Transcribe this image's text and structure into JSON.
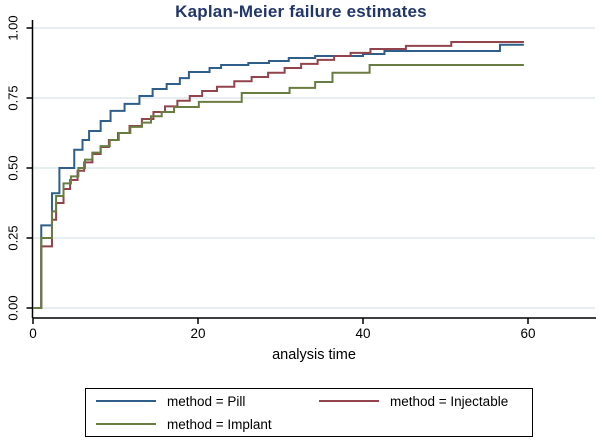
{
  "title": {
    "text": "Kaplan-Meier failure estimates",
    "color": "#21366b"
  },
  "chart_data": {
    "type": "line",
    "subtype": "step-survival",
    "title": "Kaplan-Meier failure estimates",
    "xlabel": "analysis time",
    "ylabel": "",
    "xlim": [
      0,
      68
    ],
    "ylim": [
      0,
      1.0
    ],
    "xticks": [
      0,
      20,
      40,
      60
    ],
    "ytick_labels": [
      "0.00",
      "0.25",
      "0.50",
      "0.75",
      "1.00"
    ],
    "ytick_values": [
      0,
      0.25,
      0.5,
      0.75,
      1.0
    ],
    "grid": "horizontal-only",
    "gridline_color": "#e7eef0",
    "axis_color": "#000000",
    "tick_label_color": "#000000",
    "legend_position": "bottom",
    "end_time": 59.5,
    "series": [
      {
        "name": "method = Pill",
        "color": "#2e5e89",
        "steps": [
          [
            1,
            0.295
          ],
          [
            2.3,
            0.41
          ],
          [
            3.2,
            0.5
          ],
          [
            5,
            0.565
          ],
          [
            6,
            0.6
          ],
          [
            6.8,
            0.632
          ],
          [
            8.2,
            0.668
          ],
          [
            9.4,
            0.704
          ],
          [
            11.1,
            0.729
          ],
          [
            12.9,
            0.757
          ],
          [
            14.5,
            0.782
          ],
          [
            16.2,
            0.8
          ],
          [
            17.8,
            0.821
          ],
          [
            18.9,
            0.843
          ],
          [
            21.4,
            0.857
          ],
          [
            22.8,
            0.868
          ],
          [
            26.1,
            0.875
          ],
          [
            28.6,
            0.882
          ],
          [
            31,
            0.893
          ],
          [
            34.2,
            0.9
          ],
          [
            40,
            0.907
          ],
          [
            42.6,
            0.918
          ],
          [
            56.6,
            0.94
          ]
        ]
      },
      {
        "name": "method = Injectable",
        "color": "#92434b",
        "steps": [
          [
            1,
            0.22
          ],
          [
            2.3,
            0.315
          ],
          [
            2.8,
            0.375
          ],
          [
            3.7,
            0.425
          ],
          [
            4.5,
            0.457
          ],
          [
            5.4,
            0.49
          ],
          [
            6.2,
            0.52
          ],
          [
            7.2,
            0.55
          ],
          [
            8.2,
            0.575
          ],
          [
            9.2,
            0.6
          ],
          [
            10.3,
            0.625
          ],
          [
            11.7,
            0.65
          ],
          [
            13.2,
            0.675
          ],
          [
            14.6,
            0.7
          ],
          [
            16,
            0.72
          ],
          [
            17.5,
            0.74
          ],
          [
            19,
            0.757
          ],
          [
            20.5,
            0.775
          ],
          [
            22.3,
            0.79
          ],
          [
            24.4,
            0.81
          ],
          [
            26.5,
            0.825
          ],
          [
            28.5,
            0.84
          ],
          [
            30.5,
            0.857
          ],
          [
            32.5,
            0.872
          ],
          [
            34.5,
            0.886
          ],
          [
            36.5,
            0.9
          ],
          [
            38.5,
            0.911
          ],
          [
            40.9,
            0.925
          ],
          [
            45.2,
            0.936
          ],
          [
            50.7,
            0.95
          ]
        ]
      },
      {
        "name": "method = Implant",
        "color": "#697c41",
        "steps": [
          [
            1,
            0.25
          ],
          [
            2.3,
            0.345
          ],
          [
            2.8,
            0.4
          ],
          [
            3.7,
            0.445
          ],
          [
            4.6,
            0.47
          ],
          [
            5.5,
            0.5
          ],
          [
            6.3,
            0.53
          ],
          [
            7.2,
            0.555
          ],
          [
            8.2,
            0.578
          ],
          [
            9.3,
            0.6
          ],
          [
            10.4,
            0.625
          ],
          [
            11.8,
            0.647
          ],
          [
            13.2,
            0.662
          ],
          [
            14.3,
            0.685
          ],
          [
            15.6,
            0.7
          ],
          [
            17.1,
            0.718
          ],
          [
            20.1,
            0.736
          ],
          [
            25.3,
            0.768
          ],
          [
            31.1,
            0.786
          ],
          [
            34.2,
            0.807
          ],
          [
            36.3,
            0.84
          ],
          [
            40.8,
            0.868
          ]
        ]
      }
    ]
  },
  "legend": {
    "items": [
      {
        "label": "method = Pill",
        "color": "#2e5e89"
      },
      {
        "label": "method = Injectable",
        "color": "#92434b"
      },
      {
        "label": "method = Implant",
        "color": "#697c41"
      }
    ]
  }
}
